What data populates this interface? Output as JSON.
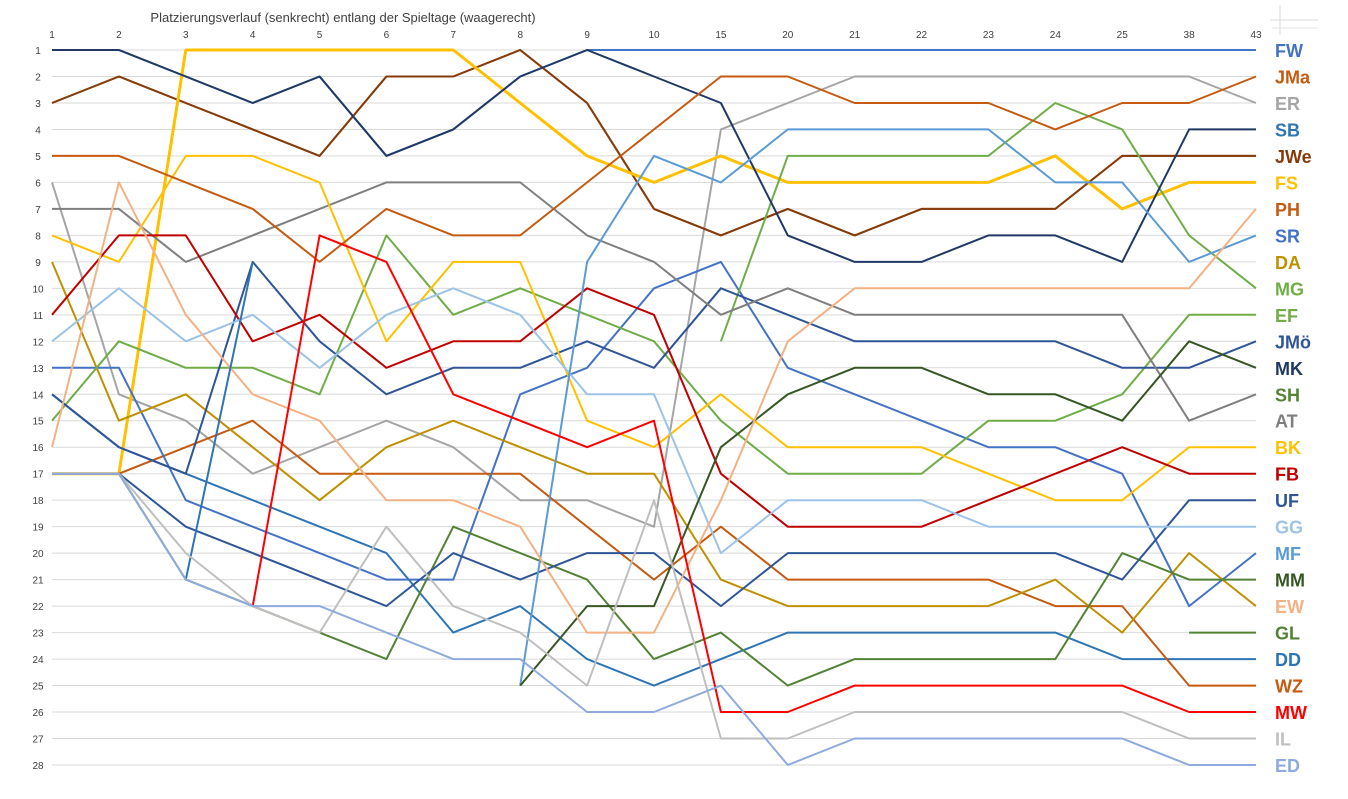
{
  "chart_data": {
    "type": "line",
    "title": "Platzierungsverlauf (senkrecht) entlang der Spieltage (waagerecht)",
    "xlabel": "",
    "ylabel": "",
    "x": [
      "1",
      "2",
      "3",
      "4",
      "5",
      "6",
      "7",
      "8",
      "9",
      "10",
      "15",
      "20",
      "21",
      "22",
      "23",
      "24",
      "25",
      "38",
      "43"
    ],
    "y_ticks": [
      1,
      2,
      3,
      4,
      5,
      6,
      7,
      8,
      9,
      10,
      11,
      12,
      13,
      14,
      15,
      16,
      17,
      18,
      19,
      20,
      21,
      22,
      23,
      24,
      25,
      26,
      27,
      28
    ],
    "ylim": [
      1,
      28
    ],
    "y_inverted": true,
    "grid": true,
    "legend_position": "right",
    "series": [
      {
        "name": "FW",
        "color": "#4472c4",
        "width": 2,
        "values": [
          1,
          1,
          2,
          3,
          2,
          5,
          4,
          2,
          1,
          1,
          1,
          1,
          1,
          1,
          1,
          1,
          1,
          1,
          1
        ]
      },
      {
        "name": "JMa",
        "color": "#c55a11",
        "width": 2,
        "values": [
          3,
          2,
          3,
          4,
          5,
          2,
          2,
          1,
          3,
          7,
          8,
          7,
          8,
          7,
          7,
          7,
          5,
          5,
          5
        ]
      },
      {
        "name": "ER",
        "color": "#a5a5a5",
        "width": 2,
        "values": [
          6,
          14,
          15,
          17,
          16,
          15,
          16,
          18,
          18,
          19,
          4,
          3,
          2,
          2,
          2,
          2,
          2,
          2,
          3
        ]
      },
      {
        "name": "SB",
        "color": "#2e75b6",
        "width": 2,
        "values": [
          14,
          16,
          17,
          18,
          19,
          20,
          23,
          22,
          24,
          25,
          24,
          23,
          23,
          23,
          23,
          23,
          24,
          24,
          24
        ]
      },
      {
        "name": "JWe",
        "color": "#843c0c",
        "width": 2,
        "values": [
          3,
          2,
          3,
          4,
          5,
          2,
          2,
          1,
          3,
          7,
          8,
          7,
          8,
          7,
          7,
          7,
          5,
          5,
          5
        ]
      },
      {
        "name": "FS",
        "color": "#ffc000",
        "width": 3,
        "values": [
          17,
          17,
          1,
          1,
          1,
          1,
          1,
          3,
          5,
          6,
          5,
          6,
          6,
          6,
          6,
          5,
          7,
          6,
          6
        ]
      },
      {
        "name": "PH",
        "color": "#c55a11",
        "width": 2,
        "values": [
          17,
          17,
          16,
          15,
          17,
          17,
          17,
          17,
          19,
          21,
          19,
          21,
          21,
          21,
          21,
          22,
          22,
          25,
          25
        ]
      },
      {
        "name": "SR",
        "color": "#4472c4",
        "width": 2,
        "values": [
          13,
          13,
          18,
          19,
          20,
          21,
          21,
          14,
          13,
          10,
          9,
          13,
          14,
          15,
          16,
          16,
          17,
          22,
          20
        ]
      },
      {
        "name": "DA",
        "color": "#bf9000",
        "width": 2,
        "values": [
          9,
          15,
          14,
          16,
          18,
          16,
          15,
          16,
          17,
          17,
          21,
          22,
          22,
          22,
          22,
          21,
          23,
          20,
          22
        ]
      },
      {
        "name": "MG",
        "color": "#70ad47",
        "width": 2,
        "values": [
          15,
          12,
          13,
          13,
          14,
          8,
          11,
          10,
          11,
          12,
          15,
          17,
          17,
          17,
          15,
          15,
          14,
          11,
          11
        ]
      },
      {
        "name": "EF",
        "color": "#70ad47",
        "width": 2,
        "values": [
          null,
          null,
          null,
          null,
          null,
          null,
          null,
          null,
          null,
          null,
          12,
          5,
          5,
          5,
          5,
          3,
          4,
          8,
          10
        ]
      },
      {
        "name": "JMö",
        "color": "#2f5597",
        "width": 2,
        "values": [
          14,
          16,
          17,
          9,
          12,
          14,
          13,
          13,
          12,
          13,
          10,
          11,
          12,
          12,
          12,
          12,
          13,
          13,
          12
        ]
      },
      {
        "name": "MK",
        "color": "#203864",
        "width": 2,
        "values": [
          1,
          1,
          2,
          3,
          2,
          5,
          4,
          2,
          1,
          2,
          3,
          8,
          9,
          9,
          8,
          8,
          9,
          4,
          4
        ]
      },
      {
        "name": "SH",
        "color": "#548235",
        "width": 2,
        "values": [
          17,
          17,
          21,
          22,
          23,
          24,
          19,
          20,
          21,
          24,
          23,
          25,
          24,
          24,
          24,
          24,
          20,
          21,
          21
        ]
      },
      {
        "name": "AT",
        "color": "#7f7f7f",
        "width": 2,
        "values": [
          7,
          7,
          9,
          8,
          7,
          6,
          6,
          6,
          8,
          9,
          11,
          10,
          11,
          11,
          11,
          11,
          11,
          15,
          14
        ]
      },
      {
        "name": "BK",
        "color": "#ffc000",
        "width": 2,
        "values": [
          8,
          9,
          5,
          5,
          6,
          12,
          9,
          9,
          15,
          16,
          14,
          16,
          16,
          16,
          17,
          18,
          18,
          16,
          16
        ]
      },
      {
        "name": "FB",
        "color": "#c00000",
        "width": 2,
        "values": [
          11,
          8,
          8,
          12,
          11,
          13,
          12,
          12,
          10,
          11,
          17,
          19,
          19,
          19,
          18,
          17,
          16,
          17,
          17
        ]
      },
      {
        "name": "UF",
        "color": "#2f5597",
        "width": 2,
        "values": [
          17,
          17,
          19,
          20,
          21,
          22,
          20,
          21,
          20,
          20,
          22,
          20,
          20,
          20,
          20,
          20,
          21,
          18,
          18
        ]
      },
      {
        "name": "GG",
        "color": "#9dc3e6",
        "width": 2,
        "values": [
          12,
          10,
          12,
          11,
          13,
          11,
          10,
          11,
          14,
          14,
          20,
          18,
          18,
          18,
          19,
          19,
          19,
          19,
          19
        ]
      },
      {
        "name": "MF",
        "color": "#5b9bd5",
        "width": 2,
        "values": [
          null,
          null,
          null,
          null,
          null,
          null,
          null,
          25,
          9,
          5,
          6,
          4,
          4,
          4,
          4,
          6,
          6,
          9,
          8
        ]
      },
      {
        "name": "MM",
        "color": "#375623",
        "width": 2,
        "values": [
          null,
          null,
          null,
          null,
          null,
          null,
          null,
          25,
          22,
          22,
          16,
          14,
          13,
          13,
          14,
          14,
          15,
          12,
          13
        ]
      },
      {
        "name": "EW",
        "color": "#f4b183",
        "width": 2,
        "values": [
          16,
          6,
          11,
          14,
          15,
          18,
          18,
          19,
          23,
          23,
          18,
          12,
          10,
          10,
          10,
          10,
          10,
          10,
          7
        ]
      },
      {
        "name": "GL",
        "color": "#548235",
        "width": 2,
        "values": [
          null,
          null,
          null,
          null,
          null,
          null,
          null,
          null,
          null,
          null,
          null,
          null,
          null,
          null,
          null,
          null,
          null,
          23,
          23
        ]
      },
      {
        "name": "DD",
        "color": "#2e75b6",
        "width": 2,
        "values": [
          null,
          null,
          21,
          9,
          null,
          null,
          null,
          null,
          null,
          null,
          null,
          null,
          null,
          null,
          null,
          null,
          null,
          null,
          null
        ]
      },
      {
        "name": "WZ",
        "color": "#c55a11",
        "width": 2,
        "values": [
          5,
          5,
          6,
          7,
          9,
          7,
          8,
          8,
          6,
          4,
          2,
          2,
          3,
          3,
          3,
          4,
          3,
          3,
          2
        ]
      },
      {
        "name": "MW",
        "color": "#ff0000",
        "width": 2,
        "values": [
          null,
          null,
          null,
          22,
          8,
          9,
          14,
          15,
          16,
          15,
          26,
          26,
          25,
          25,
          25,
          25,
          25,
          26,
          26
        ]
      },
      {
        "name": "IL",
        "color": "#bfbfbf",
        "width": 2,
        "values": [
          17,
          17,
          20,
          22,
          23,
          19,
          22,
          23,
          25,
          18,
          27,
          27,
          26,
          26,
          26,
          26,
          26,
          27,
          27
        ]
      },
      {
        "name": "ED",
        "color": "#8faadc",
        "width": 2,
        "values": [
          17,
          17,
          21,
          22,
          22,
          23,
          24,
          24,
          26,
          26,
          25,
          28,
          27,
          27,
          27,
          27,
          27,
          28,
          28
        ]
      }
    ]
  }
}
